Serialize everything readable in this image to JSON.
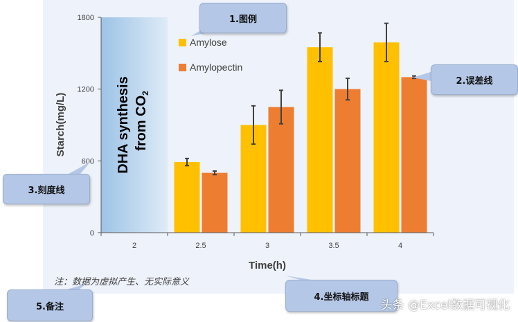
{
  "chart_data": {
    "type": "bar",
    "categories": [
      "2",
      "2.5",
      "3",
      "3.5",
      "4"
    ],
    "series": [
      {
        "name": "Amylose",
        "color": "#ffc000",
        "values": [
          null,
          590,
          900,
          1550,
          1590
        ],
        "errors": [
          null,
          30,
          160,
          120,
          160
        ]
      },
      {
        "name": "Amylopectin",
        "color": "#ed7d31",
        "values": [
          null,
          500,
          1050,
          1200,
          1300
        ],
        "errors": [
          null,
          15,
          140,
          90,
          10
        ]
      }
    ],
    "ylim": [
      0,
      1800
    ],
    "yticks": [
      0,
      600,
      1200,
      1800
    ],
    "xlabel": "Time(h)",
    "ylabel": "Starch(mg/L)",
    "shaded_region": {
      "x_category": "2",
      "label_line1": "DHA synthesis",
      "label_line2_prefix": "from CO",
      "label_line2_sub": "2"
    },
    "legend_position": "top-center",
    "grid": false
  },
  "note": "注：数据为虚拟产生、无实际意义",
  "callouts": {
    "legend": "1.图例",
    "error_bars": "2.误差线",
    "ticks": "3.刻度线",
    "axis_title": "4.坐标轴标题",
    "note": "5.备注"
  },
  "watermark": "头条 @Excel数据可视化",
  "colors": {
    "panel": "#eef2fa",
    "shade": "#bdd7ee",
    "callout": "#b4c7e7"
  }
}
